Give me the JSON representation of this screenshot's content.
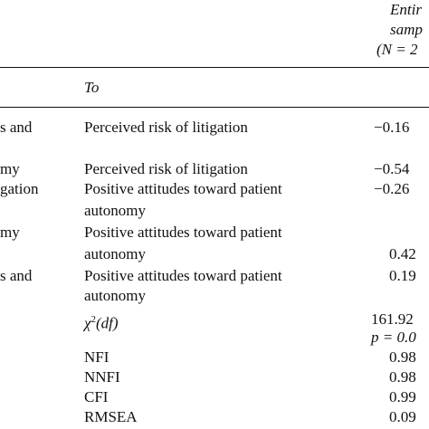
{
  "header": {
    "col_entire_line1": "Entir",
    "col_entire_line2": "samp",
    "col_entire_line3": "(N = 2",
    "col_to": "To"
  },
  "rows": [
    {
      "from_fragment": "s and",
      "to_line1": "Perceived risk of litigation",
      "to_line2": "",
      "value": "−0.16"
    },
    {
      "from_fragment": "my",
      "to_line1": "Perceived risk of litigation",
      "to_line2": "",
      "value": "−0.54"
    },
    {
      "from_fragment": "gation",
      "to_line1": "Positive attitudes toward patient",
      "to_line2": "autonomy",
      "value": "−0.26"
    },
    {
      "from_fragment": "my",
      "to_line1": "Positive attitudes toward patient",
      "to_line2": "autonomy",
      "value": "0.42"
    },
    {
      "from_fragment": "s and",
      "to_line1": "Positive attitudes toward patient",
      "to_line2": "autonomy",
      "value": "0.19"
    }
  ],
  "fit": {
    "chi_label": "χ",
    "chi_sup": "2",
    "chi_df": "(df)",
    "chi_value": "161.92",
    "p_value": "p = 0.0",
    "indices": [
      {
        "label": "NFI",
        "value": "0.98"
      },
      {
        "label": "NNFI",
        "value": "0.98"
      },
      {
        "label": "CFI",
        "value": "0.99"
      },
      {
        "label": "RMSEA",
        "value": "0.09"
      }
    ]
  }
}
